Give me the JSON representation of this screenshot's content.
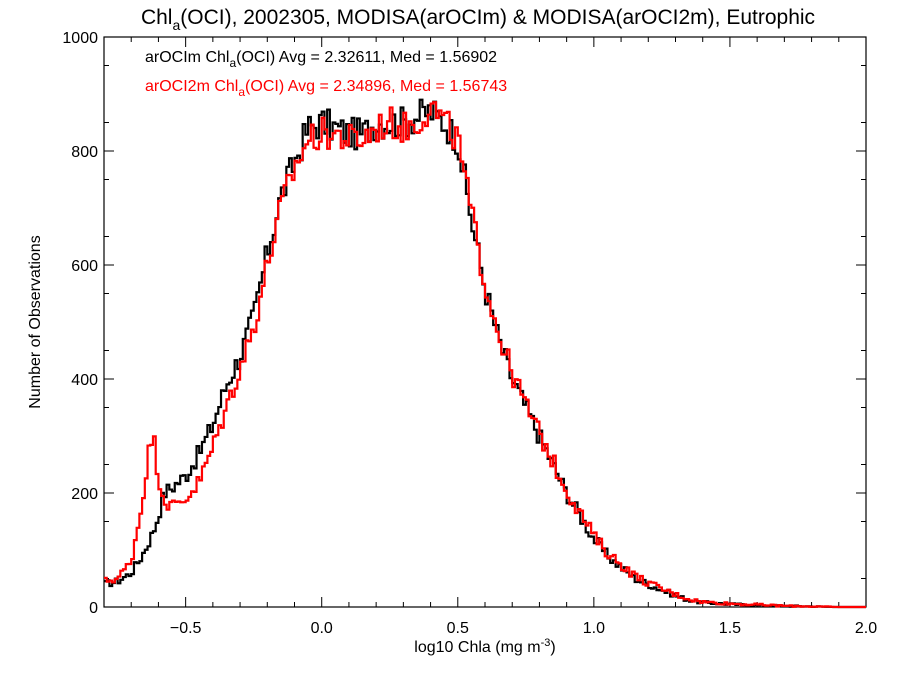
{
  "chart_data": {
    "type": "line",
    "step": true,
    "title": {
      "base": "Chl",
      "sub": "a",
      "rest": "(OCI), 2002305, MODISA(arOCIm) & MODISA(arOCI2m), Eutrophic"
    },
    "xlabel": {
      "base": "log10 Chla (mg m",
      "sup": "-3",
      "end": ")"
    },
    "ylabel": "Number of Observations",
    "xlim": [
      -0.8,
      2.0
    ],
    "ylim": [
      0,
      1000
    ],
    "xticks": [
      -0.5,
      0.0,
      0.5,
      1.0,
      1.5,
      2.0
    ],
    "xtick_labels": [
      "−0.5",
      "0.0",
      "0.5",
      "1.0",
      "1.5",
      "2.0"
    ],
    "yticks": [
      0,
      200,
      400,
      600,
      800,
      1000
    ],
    "ytick_labels": [
      "0",
      "200",
      "400",
      "600",
      "800",
      "1000"
    ],
    "grid": false,
    "annotations": [
      {
        "name_text": "arOCIm Chl",
        "sub": "a",
        "rest": "(OCI) Avg = 2.32611, Med = 1.56902",
        "color": "#000000"
      },
      {
        "name_text": "arOCI2m Chl",
        "sub": "a",
        "rest": "(OCI) Avg = 2.34896, Med = 1.56743",
        "color": "#ff0000"
      }
    ],
    "series": [
      {
        "color": "#000000",
        "x": [
          -0.8,
          -0.75,
          -0.7,
          -0.66,
          -0.64,
          -0.62,
          -0.6,
          -0.58,
          -0.55,
          -0.5,
          -0.45,
          -0.4,
          -0.35,
          -0.3,
          -0.25,
          -0.2,
          -0.15,
          -0.1,
          -0.05,
          0.0,
          0.05,
          0.1,
          0.15,
          0.2,
          0.25,
          0.3,
          0.35,
          0.4,
          0.45,
          0.5,
          0.55,
          0.6,
          0.65,
          0.7,
          0.75,
          0.8,
          0.85,
          0.9,
          0.95,
          1.0,
          1.05,
          1.1,
          1.15,
          1.2,
          1.25,
          1.3,
          1.35,
          1.4,
          1.5,
          1.6,
          1.7,
          1.8,
          1.9,
          2.0
        ],
        "y": [
          40,
          45,
          60,
          90,
          110,
          130,
          160,
          200,
          210,
          230,
          270,
          320,
          390,
          440,
          510,
          620,
          720,
          780,
          840,
          850,
          840,
          830,
          830,
          850,
          850,
          850,
          860,
          870,
          850,
          820,
          680,
          560,
          470,
          400,
          350,
          300,
          250,
          200,
          160,
          120,
          90,
          70,
          50,
          40,
          30,
          20,
          12,
          8,
          5,
          3,
          2,
          1,
          0,
          0
        ]
      },
      {
        "color": "#ff0000",
        "x": [
          -0.8,
          -0.75,
          -0.7,
          -0.66,
          -0.64,
          -0.62,
          -0.6,
          -0.58,
          -0.55,
          -0.5,
          -0.45,
          -0.4,
          -0.35,
          -0.3,
          -0.25,
          -0.2,
          -0.15,
          -0.1,
          -0.05,
          0.0,
          0.05,
          0.1,
          0.15,
          0.2,
          0.25,
          0.3,
          0.35,
          0.4,
          0.45,
          0.5,
          0.55,
          0.6,
          0.65,
          0.7,
          0.75,
          0.8,
          0.85,
          0.9,
          0.95,
          1.0,
          1.05,
          1.1,
          1.15,
          1.2,
          1.25,
          1.3,
          1.35,
          1.4,
          1.5,
          1.6,
          1.7,
          1.8,
          1.9,
          2.0
        ],
        "y": [
          45,
          50,
          80,
          180,
          260,
          305,
          230,
          190,
          175,
          190,
          220,
          280,
          350,
          420,
          490,
          600,
          700,
          770,
          820,
          830,
          830,
          820,
          820,
          840,
          850,
          840,
          850,
          880,
          850,
          820,
          690,
          570,
          480,
          410,
          355,
          305,
          255,
          205,
          165,
          125,
          95,
          75,
          55,
          42,
          32,
          22,
          14,
          9,
          6,
          4,
          2,
          1,
          0,
          0
        ]
      }
    ]
  }
}
